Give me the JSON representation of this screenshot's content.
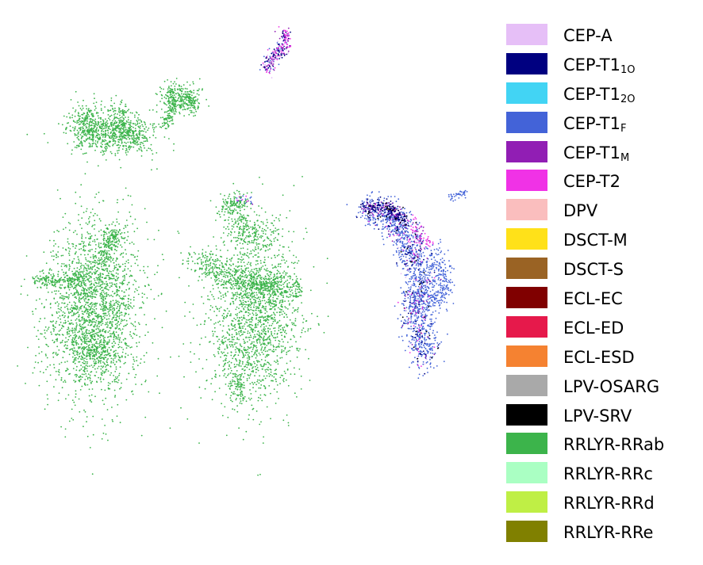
{
  "chart_data": {
    "type": "scatter",
    "title": "",
    "xlabel": "",
    "ylabel": "",
    "axes_visible": false,
    "grid": false,
    "legend_position": "right",
    "series": [
      {
        "name": "CEP-A",
        "main": "CEP-A",
        "sub": "",
        "color": "#e6bff7"
      },
      {
        "name": "CEP-T1_1O",
        "main": "CEP-T1",
        "sub": "1O",
        "color": "#000080"
      },
      {
        "name": "CEP-T1_2O",
        "main": "CEP-T1",
        "sub": "2O",
        "color": "#42d4f4"
      },
      {
        "name": "CEP-T1_F",
        "main": "CEP-T1",
        "sub": "F",
        "color": "#4363d8"
      },
      {
        "name": "CEP-T1_M",
        "main": "CEP-T1",
        "sub": "M",
        "color": "#911eb4"
      },
      {
        "name": "CEP-T2",
        "main": "CEP-T2",
        "sub": "",
        "color": "#f032e6"
      },
      {
        "name": "DPV",
        "main": "DPV",
        "sub": "",
        "color": "#fabebe"
      },
      {
        "name": "DSCT-M",
        "main": "DSCT-M",
        "sub": "",
        "color": "#ffe119"
      },
      {
        "name": "DSCT-S",
        "main": "DSCT-S",
        "sub": "",
        "color": "#9a6324"
      },
      {
        "name": "ECL-EC",
        "main": "ECL-EC",
        "sub": "",
        "color": "#800000"
      },
      {
        "name": "ECL-ED",
        "main": "ECL-ED",
        "sub": "",
        "color": "#e6194b"
      },
      {
        "name": "ECL-ESD",
        "main": "ECL-ESD",
        "sub": "",
        "color": "#f58231"
      },
      {
        "name": "LPV-OSARG",
        "main": "LPV-OSARG",
        "sub": "",
        "color": "#a9a9a9"
      },
      {
        "name": "LPV-SRV",
        "main": "LPV-SRV",
        "sub": "",
        "color": "#000000"
      },
      {
        "name": "RRLYR-RRab",
        "main": "RRLYR-RRab",
        "sub": "",
        "color": "#3cb44b"
      },
      {
        "name": "RRLYR-RRc",
        "main": "RRLYR-RRc",
        "sub": "",
        "color": "#aaffc3"
      },
      {
        "name": "RRLYR-RRd",
        "main": "RRLYR-RRd",
        "sub": "",
        "color": "#bfef45"
      },
      {
        "name": "RRLYR-RRe",
        "main": "RRLYR-RRe",
        "sub": "",
        "color": "#808000"
      }
    ]
  }
}
